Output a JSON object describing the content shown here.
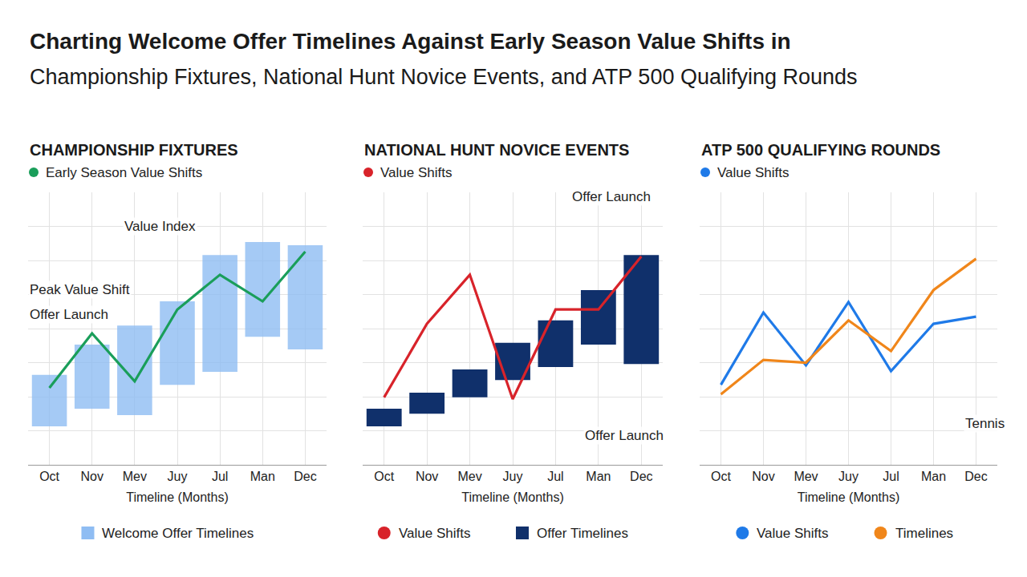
{
  "title": "Charting Welcome Offer Timelines Against Early Season Value Shifts in",
  "subtitle": "Championship Fixtures, National Hunt Novice Events, and ATP 500 Qualifying Rounds",
  "chart_data": [
    {
      "type": "bar",
      "title": "CHAMPIONSHIP FIXTURES",
      "key": "Early Season Value Shifts",
      "categories": [
        "Oct",
        "Nov",
        "Mev",
        "Juy",
        "Jul",
        "Man",
        "Dec"
      ],
      "x_label": "Timeline (Months)",
      "ylim": [
        0,
        8
      ],
      "yticks": [
        0,
        1,
        2,
        3,
        4,
        5,
        6,
        7,
        8
      ],
      "grid": true,
      "tick_labels": "x",
      "legend": "bottom",
      "legend_entries": [
        "Welcome Offer Timelines"
      ],
      "series": [
        {
          "name": "Welcome Offer Timelines",
          "type": "bar",
          "color": "#8fbdf3",
          "base": [
            1.13,
            1.65,
            1.46,
            2.35,
            2.73,
            3.76,
            3.39
          ],
          "values": [
            1.51,
            1.88,
            2.63,
            2.45,
            3.43,
            2.78,
            3.06
          ]
        },
        {
          "name": "Early Season Value Shifts",
          "type": "line",
          "color": "#1a9e5a",
          "values": [
            2.26,
            3.86,
            2.45,
            4.56,
            5.58,
            4.8,
            6.26
          ]
        }
      ],
      "annotations": [
        {
          "text": "Value Index",
          "x": 2.6,
          "y": 7.0
        },
        {
          "text": "Peak Value Shift",
          "x": -0.5,
          "y": 5.13
        },
        {
          "text": "Offer Launch",
          "x": -0.5,
          "y": 4.4
        }
      ]
    },
    {
      "type": "bar",
      "title": "NATIONAL HUNT NOVICE EVENTS",
      "key": "Value Shifts",
      "categories": [
        "Oct",
        "Nov",
        "Mev",
        "Juy",
        "Jul",
        "Man",
        "Dec"
      ],
      "x_label": "Timeline (Months)",
      "ylim": [
        0,
        8
      ],
      "yticks": [
        0,
        1,
        2,
        3,
        4,
        5,
        6,
        7,
        8
      ],
      "grid": true,
      "tick_labels": "x",
      "legend": "bottom",
      "legend_entries": [
        "Value Shifts",
        "Offer Timelines"
      ],
      "series": [
        {
          "name": "Offer Timelines",
          "type": "bar",
          "color": "#10306b",
          "base": [
            1.13,
            1.5,
            1.98,
            2.49,
            2.87,
            3.53,
            2.96
          ],
          "values": [
            0.52,
            0.62,
            0.82,
            1.09,
            1.37,
            1.6,
            3.2
          ]
        },
        {
          "name": "Value Shifts",
          "type": "line",
          "color": "#d8232a",
          "values": [
            1.98,
            4.14,
            5.58,
            1.93,
            4.56,
            4.56,
            6.12
          ]
        }
      ],
      "annotations": [
        {
          "text": "Offer Launch",
          "x": 5.3,
          "y": 7.86
        },
        {
          "text": "Offer Launch",
          "x": 5.6,
          "y": 0.87
        }
      ]
    },
    {
      "type": "line",
      "title": "ATP 500 QUALIFYING ROUNDS",
      "key": "Value Shifts",
      "categories": [
        "Oct",
        "Nov",
        "Mev",
        "Juy",
        "Jul",
        "Man",
        "Dec"
      ],
      "x_label": "Timeline (Months)",
      "ylim": [
        0,
        8
      ],
      "yticks": [
        0,
        1,
        2,
        3,
        4,
        5,
        6,
        7,
        8
      ],
      "grid": true,
      "tick_labels": "x",
      "legend": "bottom",
      "legend_entries": [
        "Value Shifts",
        "Timelines"
      ],
      "series": [
        {
          "name": "Value Shifts",
          "type": "line",
          "color": "#1f7ae8",
          "values": [
            2.35,
            4.47,
            2.92,
            4.78,
            2.75,
            4.14,
            4.35
          ]
        },
        {
          "name": "Timelines",
          "type": "line",
          "color": "#f0861a",
          "values": [
            2.07,
            3.08,
            3.0,
            4.24,
            3.34,
            5.13,
            6.05
          ]
        }
      ],
      "annotations": [
        {
          "text": "Tennis",
          "x": 6.2,
          "y": 1.22
        }
      ]
    }
  ]
}
